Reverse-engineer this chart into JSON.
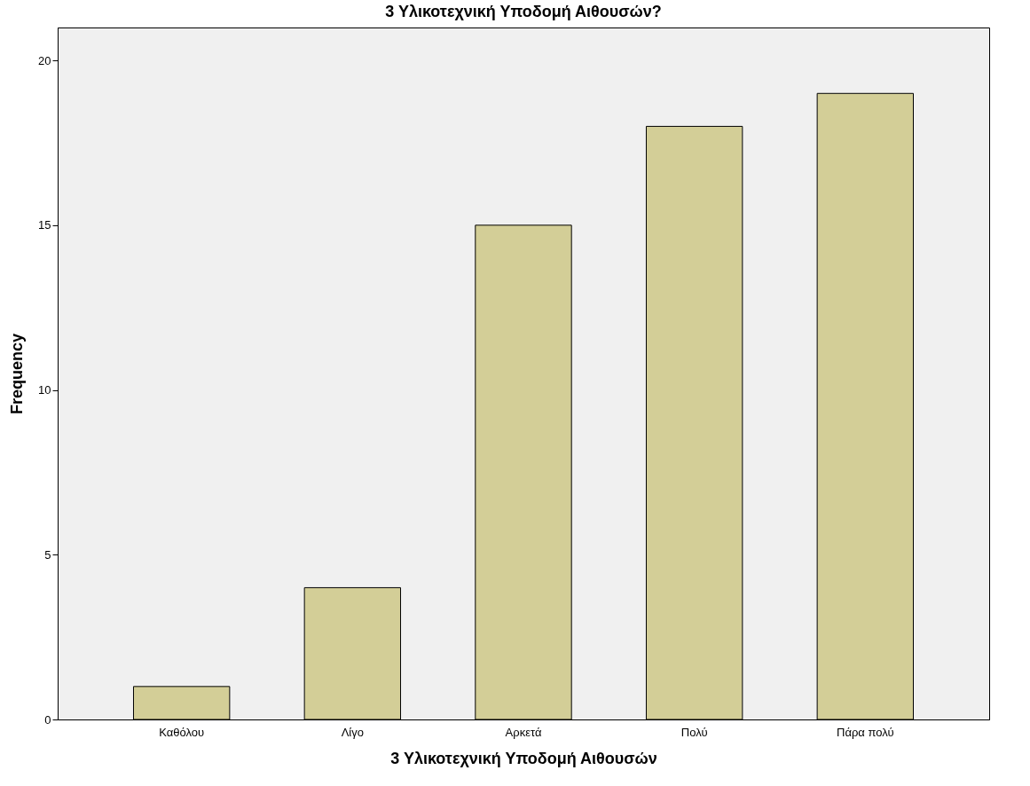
{
  "chart_data": {
    "type": "bar",
    "title": "3 Υλικοτεχνική Υποδομή Αιθουσών?",
    "xlabel": "3 Υλικοτεχνική Υποδομή Αιθουσών",
    "ylabel": "Frequency",
    "categories": [
      "Καθόλου",
      "Λίγο",
      "Αρκετά",
      "Πολύ",
      "Πάρα πολύ"
    ],
    "values": [
      1,
      4,
      15,
      18,
      19
    ],
    "color": "#d3ce97",
    "ylim": [
      0,
      21
    ],
    "yticks": [
      0,
      5,
      10,
      15,
      20
    ],
    "grid": false
  }
}
